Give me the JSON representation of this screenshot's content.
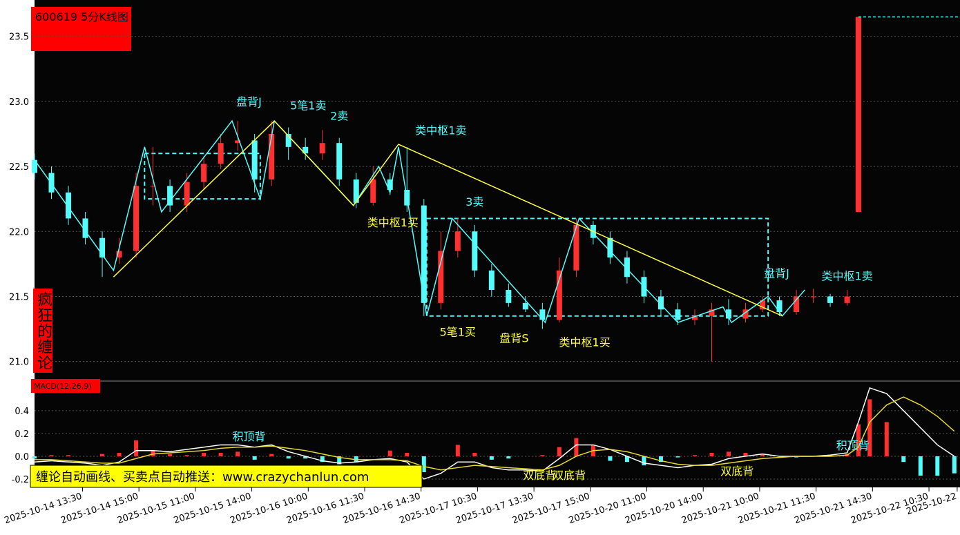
{
  "watermark": {
    "side": "疯狂的缠论",
    "banner": "缠论自动画线、买卖点自动推送：www.crazychanlun.com"
  },
  "chart_data": [
    {
      "type": "candlestick",
      "title": "600619 5分K线图",
      "xlim": [
        0,
        328
      ],
      "ylim": [
        20.86,
        23.78
      ],
      "yticks": [
        {
          "value": 21,
          "label": "21.0"
        },
        21.5,
        {
          "value": 22,
          "label": "22.0"
        },
        22.5,
        {
          "value": 23,
          "label": "23.0"
        },
        23.5
      ],
      "grid": true,
      "up_color": "#ff3030",
      "down_color": "#54fcfc",
      "x": [
        0,
        6,
        12,
        18,
        24,
        30,
        36,
        42,
        48,
        54,
        60,
        66,
        72,
        78,
        84,
        90,
        96,
        102,
        108,
        114,
        120,
        126,
        132,
        138,
        144,
        150,
        156,
        162,
        168,
        174,
        180,
        186,
        192,
        198,
        204,
        210,
        216,
        222,
        228,
        234,
        240,
        246,
        252,
        258,
        264,
        270,
        276,
        282,
        288,
        292
      ],
      "open": [
        22.55,
        22.45,
        22.3,
        22.1,
        21.95,
        21.8,
        21.85,
        22.35,
        22.35,
        22.2,
        22.38,
        22.52,
        22.68,
        22.7,
        22.4,
        22.75,
        22.65,
        22.6,
        22.68,
        22.4,
        22.22,
        22.4,
        22.32,
        22.2,
        21.45,
        21.85,
        22.0,
        21.7,
        21.55,
        21.45,
        21.4,
        21.32,
        21.7,
        22.05,
        21.95,
        21.8,
        21.65,
        21.5,
        21.4,
        21.32,
        21.35,
        21.4,
        21.33,
        21.4,
        21.47,
        21.38,
        21.5,
        21.5,
        21.45,
        22.15
      ],
      "high": [
        22.6,
        22.5,
        22.35,
        22.15,
        22.0,
        21.95,
        22.45,
        22.65,
        22.4,
        22.45,
        22.58,
        22.75,
        22.85,
        22.75,
        22.85,
        22.8,
        22.72,
        22.78,
        22.72,
        22.45,
        22.5,
        22.45,
        22.65,
        22.25,
        22.0,
        22.1,
        22.05,
        21.75,
        21.6,
        21.5,
        21.45,
        21.8,
        22.1,
        22.08,
        22.0,
        21.85,
        21.7,
        21.55,
        21.45,
        21.4,
        21.45,
        21.48,
        21.45,
        21.5,
        21.5,
        21.55,
        21.56,
        21.52,
        21.55,
        23.65
      ],
      "low": [
        22.4,
        22.25,
        22.05,
        21.9,
        21.65,
        21.75,
        21.8,
        22.2,
        22.15,
        22.15,
        22.33,
        22.48,
        22.62,
        22.3,
        22.35,
        22.55,
        22.55,
        22.55,
        22.35,
        22.18,
        22.2,
        22.28,
        22.15,
        21.35,
        21.4,
        21.8,
        21.65,
        21.5,
        21.42,
        21.38,
        21.25,
        21.3,
        21.65,
        21.9,
        21.75,
        21.6,
        21.45,
        21.35,
        21.28,
        21.28,
        21.0,
        21.28,
        21.3,
        21.38,
        21.35,
        21.36,
        21.45,
        21.42,
        21.43,
        22.15
      ],
      "close": [
        22.45,
        22.3,
        22.1,
        21.95,
        21.8,
        21.85,
        22.35,
        22.35,
        22.2,
        22.38,
        22.52,
        22.68,
        22.7,
        22.4,
        22.75,
        22.65,
        22.6,
        22.68,
        22.4,
        22.22,
        22.4,
        22.32,
        22.2,
        21.45,
        21.85,
        22.0,
        21.7,
        21.55,
        21.45,
        21.4,
        21.32,
        21.7,
        22.05,
        21.95,
        21.8,
        21.65,
        21.5,
        21.4,
        21.32,
        21.35,
        21.4,
        21.33,
        21.4,
        21.47,
        21.38,
        21.5,
        21.5,
        21.45,
        21.5,
        23.65
      ],
      "lines": [
        {
          "color": "#54fcfc",
          "x": [
            0,
            28,
            39,
            45,
            70,
            80,
            85,
            113,
            122,
            126,
            129,
            139,
            148,
            181,
            193,
            228,
            244,
            247,
            260,
            265,
            273
          ],
          "values": [
            22.55,
            21.7,
            22.65,
            22.15,
            22.85,
            22.25,
            22.85,
            22.2,
            22.5,
            22.3,
            22.65,
            21.35,
            22.1,
            21.3,
            22.1,
            21.3,
            21.42,
            21.3,
            21.5,
            21.35,
            21.55
          ]
        },
        {
          "color": "#ffff40",
          "x": [
            28,
            85,
            113,
            129,
            265
          ],
          "values": [
            21.65,
            22.85,
            22.2,
            22.67,
            21.35
          ]
        },
        {
          "color": "#54fcfc",
          "dash": true,
          "x": [
            292,
            328
          ],
          "values": [
            23.65,
            23.65
          ]
        }
      ],
      "boxes": [
        {
          "color": "#54fcfc",
          "x": [
            39,
            80
          ],
          "y": [
            22.25,
            22.6
          ]
        },
        {
          "color": "#54fcfc",
          "x": [
            139,
            260
          ],
          "y": [
            21.35,
            22.1
          ]
        }
      ],
      "annotations": [
        {
          "text": "盘背J",
          "x": 76,
          "y": 23.0,
          "color": "#54fcfc"
        },
        {
          "text": "5笔1卖",
          "x": 97,
          "y": 22.97,
          "color": "#54fcfc"
        },
        {
          "text": "2卖",
          "x": 108,
          "y": 22.89,
          "color": "#54fcfc"
        },
        {
          "text": "类中枢1卖",
          "x": 144,
          "y": 22.78,
          "color": "#54fcfc"
        },
        {
          "text": "类中枢1买",
          "x": 127,
          "y": 22.07,
          "color": "#ffff40"
        },
        {
          "text": "3卖",
          "x": 156,
          "y": 22.23,
          "color": "#54fcfc"
        },
        {
          "text": "5笔1买",
          "x": 150,
          "y": 21.23,
          "color": "#ffff40"
        },
        {
          "text": "盘背S",
          "x": 170,
          "y": 21.18,
          "color": "#ffff40"
        },
        {
          "text": "类中枢1买",
          "x": 195,
          "y": 21.15,
          "color": "#ffff40"
        },
        {
          "text": "盘背J",
          "x": 263,
          "y": 21.68,
          "color": "#54fcfc"
        },
        {
          "text": "类中枢1卖",
          "x": 288,
          "y": 21.66,
          "color": "#54fcfc"
        }
      ]
    },
    {
      "type": "macd",
      "title": "MACD(12,26,9)",
      "xlim": [
        0,
        328
      ],
      "ylim": [
        -0.267,
        0.642
      ],
      "yticks": [
        -0.2,
        {
          "value": 0,
          "label": "0.0"
        },
        0.2,
        0.4
      ],
      "grid": true,
      "xticks": [
        {
          "value": 17,
          "label": "2025-10-14 13:30"
        },
        {
          "value": 37,
          "label": "2025-10-14 15:00"
        },
        {
          "value": 57,
          "label": "2025-10-15 11:00"
        },
        {
          "value": 77,
          "label": "2025-10-15 14:00"
        },
        {
          "value": 97,
          "label": "2025-10-16 10:00"
        },
        {
          "value": 117,
          "label": "2025-10-16 11:30"
        },
        {
          "value": 137,
          "label": "2025-10-16 14:30"
        },
        {
          "value": 157,
          "label": "2025-10-17 10:30"
        },
        {
          "value": 177,
          "label": "2025-10-17 13:30"
        },
        {
          "value": 197,
          "label": "2025-10-17 15:00"
        },
        {
          "value": 217,
          "label": "2025-10-20 11:00"
        },
        {
          "value": 237,
          "label": "2025-10-20 14:00"
        },
        {
          "value": 257,
          "label": "2025-10-21 10:00"
        },
        {
          "value": 277,
          "label": "2025-10-21 11:30"
        },
        {
          "value": 297,
          "label": "2025-10-21 14:30"
        },
        {
          "value": 317,
          "label": "2025-10-22 10:30"
        },
        {
          "value": 327,
          "label": "2025-10-22"
        }
      ],
      "x": [
        0,
        6,
        12,
        18,
        24,
        30,
        36,
        42,
        48,
        54,
        60,
        66,
        72,
        78,
        84,
        90,
        96,
        102,
        108,
        114,
        120,
        126,
        132,
        138,
        144,
        150,
        156,
        162,
        168,
        174,
        180,
        186,
        192,
        198,
        204,
        210,
        216,
        222,
        228,
        234,
        240,
        246,
        252,
        258,
        264,
        270,
        276,
        282,
        288,
        292,
        296,
        302,
        308,
        314,
        320,
        326
      ],
      "pos_color": "#ff3030",
      "neg_color": "#54fcfc",
      "hist": [
        -0.02,
        0.01,
        0.01,
        0.0,
        0.02,
        0.03,
        0.14,
        0.05,
        0.02,
        0.01,
        0.03,
        0.03,
        0.04,
        -0.03,
        0.02,
        -0.02,
        -0.02,
        -0.05,
        -0.07,
        -0.05,
        0.0,
        0.05,
        0.03,
        -0.14,
        0.0,
        0.1,
        0.03,
        -0.03,
        -0.02,
        0.0,
        0.01,
        0.08,
        0.16,
        0.1,
        -0.04,
        -0.05,
        -0.08,
        -0.05,
        -0.01,
        0.01,
        0.03,
        0.04,
        0.03,
        0.02,
        0.0,
        -0.01,
        0.0,
        0.01,
        0.02,
        0.28,
        0.5,
        0.3,
        -0.05,
        -0.17,
        -0.17,
        -0.15
      ],
      "series": [
        {
          "color": "#ffffff",
          "values": [
            -0.05,
            -0.04,
            -0.05,
            -0.06,
            -0.08,
            -0.05,
            0.05,
            0.05,
            0.04,
            0.06,
            0.08,
            0.1,
            0.1,
            0.08,
            0.1,
            0.04,
            0.0,
            -0.04,
            -0.06,
            -0.05,
            -0.03,
            -0.02,
            -0.05,
            -0.2,
            -0.15,
            -0.05,
            -0.05,
            -0.1,
            -0.12,
            -0.12,
            -0.13,
            -0.02,
            0.1,
            0.1,
            0.06,
            0.0,
            -0.06,
            -0.08,
            -0.1,
            -0.08,
            -0.07,
            -0.02,
            0.0,
            0.02,
            0.0,
            0.0,
            0.0,
            0.01,
            0.03,
            0.3,
            0.6,
            0.55,
            0.4,
            0.25,
            0.1,
            0.0
          ]
        },
        {
          "color": "#e8d830",
          "values": [
            -0.03,
            -0.03,
            -0.04,
            -0.05,
            -0.06,
            -0.06,
            -0.02,
            0.02,
            0.03,
            0.04,
            0.05,
            0.07,
            0.08,
            0.08,
            0.09,
            0.07,
            0.05,
            0.02,
            -0.01,
            -0.03,
            -0.03,
            -0.03,
            -0.04,
            -0.09,
            -0.12,
            -0.1,
            -0.08,
            -0.09,
            -0.1,
            -0.11,
            -0.12,
            -0.08,
            0.0,
            0.05,
            0.06,
            0.04,
            0.0,
            -0.04,
            -0.07,
            -0.08,
            -0.08,
            -0.06,
            -0.04,
            -0.02,
            -0.01,
            0.0,
            0.0,
            0.0,
            0.01,
            0.08,
            0.3,
            0.45,
            0.52,
            0.45,
            0.35,
            0.22
          ]
        }
      ],
      "annotations": [
        {
          "text": "积顶背",
          "x": 76,
          "y": 0.176,
          "color": "#54fcfc"
        },
        {
          "text": "双底背",
          "x": 179,
          "y": -0.164,
          "color": "#ffff40"
        },
        {
          "text": "双底背",
          "x": 189.5,
          "y": -0.164,
          "color": "#ffff40"
        },
        {
          "text": "双底背",
          "x": 249,
          "y": -0.127,
          "color": "#ffff40"
        },
        {
          "text": "积顶背",
          "x": 290,
          "y": 0.097,
          "color": "#54fcfc"
        }
      ]
    }
  ]
}
